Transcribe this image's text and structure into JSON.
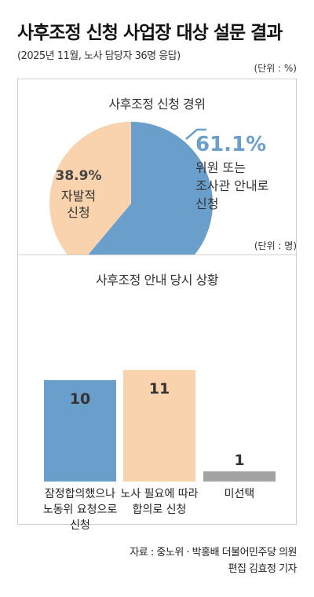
{
  "header": {
    "title": "사후조정 신청 사업장 대상 설문 결과",
    "subtitle": "(2025년 11월, 노사 담당자 36명 응답)"
  },
  "chart_data": [
    {
      "type": "pie",
      "unit_label": "(단위 : %)",
      "title": "사후조정 신청 경위",
      "slices": [
        {
          "label_lines": [
            "위원 또는",
            "조사관 안내로",
            "신청"
          ],
          "value": 61.1,
          "value_label": "61.1%",
          "color": "#6a9fcc"
        },
        {
          "label_lines": [
            "자발적",
            "신청"
          ],
          "value": 38.9,
          "value_label": "38.9%",
          "color": "#f8d3ae"
        }
      ]
    },
    {
      "type": "bar",
      "unit_label": "(단위 : 명)",
      "title": "사후조정 안내 당시 상황",
      "categories": [
        [
          "잠정합의했으나",
          "노동위 요청으로",
          "신청"
        ],
        [
          "노사 필요에 따라",
          "합의로 신청"
        ],
        [
          "미선택"
        ]
      ],
      "values": [
        10,
        11,
        1
      ],
      "value_labels": [
        "10",
        "11",
        "1"
      ],
      "colors": [
        "#6a9fcc",
        "#f8d3ae",
        "#a3a3a3"
      ],
      "ylim": [
        0,
        11
      ]
    }
  ],
  "footer": {
    "source": "자료 :  중노위 · 박홍배 더불어민주당 의원",
    "credit": "편집 김효정 기자"
  }
}
